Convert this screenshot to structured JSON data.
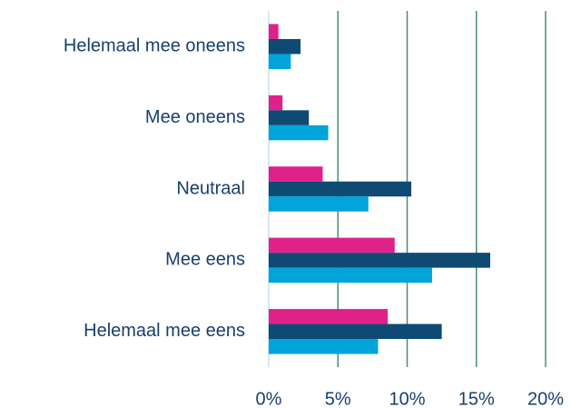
{
  "chart_data": {
    "type": "barh",
    "categories": [
      "Helemaal mee oneens",
      "Mee oneens",
      "Neutraal",
      "Mee eens",
      "Helemaal mee eens"
    ],
    "series": [
      {
        "color": "#e0218a",
        "values": [
          0.7,
          1.0,
          3.9,
          9.1,
          8.6
        ]
      },
      {
        "color": "#0e4a74",
        "values": [
          2.3,
          2.9,
          10.3,
          16.0,
          12.5
        ]
      },
      {
        "color": "#00a3da",
        "values": [
          1.6,
          4.3,
          7.2,
          11.8,
          7.9
        ]
      }
    ],
    "xlim": [
      0,
      20
    ],
    "xticks": [
      {
        "value": 0,
        "label": "0%"
      },
      {
        "value": 5,
        "label": "5%"
      },
      {
        "value": 10,
        "label": "10%"
      },
      {
        "value": 15,
        "label": "15%"
      },
      {
        "value": 20,
        "label": "20%"
      }
    ],
    "grid": true,
    "grid_color": "#4a8c7a",
    "axis_color": "#c5e2f0"
  }
}
